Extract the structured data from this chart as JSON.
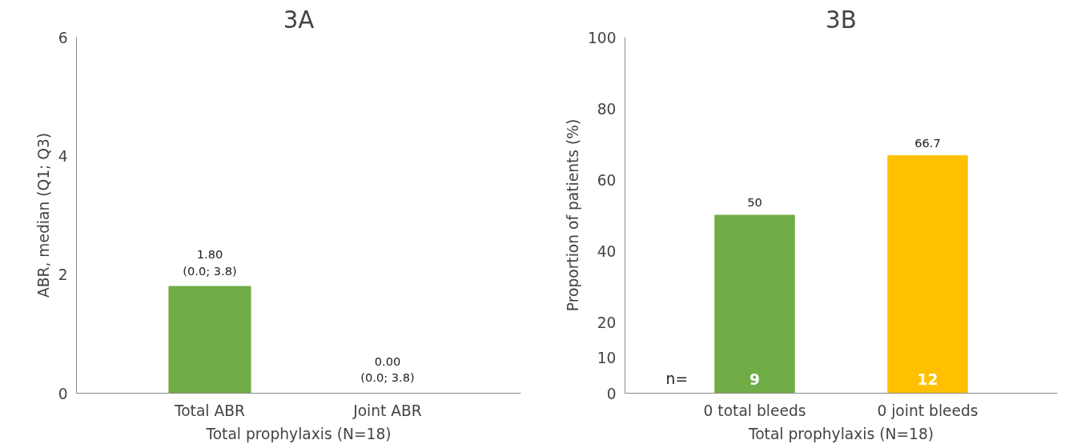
{
  "chart_data": [
    {
      "type": "bar",
      "title": "3A",
      "xlabel": "Total prophylaxis (N=18)",
      "ylabel": "ABR, median (Q1; Q3)",
      "categories": [
        "Total ABR",
        "Joint ABR"
      ],
      "values": [
        1.8,
        0.0
      ],
      "colors": [
        "#70ad47",
        "#70ad47"
      ],
      "value_labels": [
        "1.80\n(0.0; 3.8)",
        "0.00\n(0.0; 3.8)"
      ],
      "ylim": [
        0,
        6
      ],
      "yticks": [
        0,
        2,
        4,
        6
      ],
      "grid": false
    },
    {
      "type": "bar",
      "title": "3B",
      "xlabel": "Total prophylaxis (N=18)",
      "ylabel": "Proportion of patients (%)",
      "categories": [
        "0 total bleeds",
        "0 joint bleeds"
      ],
      "values": [
        50,
        66.7
      ],
      "colors": [
        "#70ad47",
        "#ffc000"
      ],
      "data_labels": true,
      "ylim": [
        0,
        100
      ],
      "yticks": [
        0,
        10,
        20,
        40,
        60,
        80,
        100
      ],
      "grid": false,
      "annotations": [
        "n=",
        "9",
        "12"
      ]
    }
  ]
}
